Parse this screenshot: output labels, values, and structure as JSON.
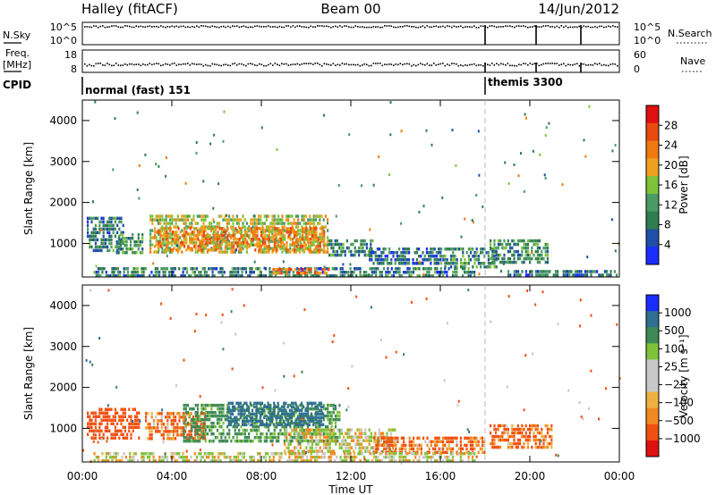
{
  "header": {
    "station": "Halley (fitACF)",
    "beam": "Beam 00",
    "date": "14/Jun/2012"
  },
  "nsky_panel": {
    "left_label": "N.Sky",
    "left_ticks": [
      "10^5",
      "10^0"
    ],
    "right_label": "N.Search",
    "right_ticks": [
      "10^5",
      "10^0"
    ]
  },
  "freq_panel": {
    "left_label_1": "Freq.",
    "left_label_2": "[MHz]",
    "left_ticks": [
      "18",
      "8"
    ],
    "right_label": "Nave",
    "right_ticks": [
      "60",
      "0"
    ]
  },
  "cpid": {
    "label": "CPID",
    "segments": [
      {
        "name": "normal (fast) 151",
        "start_hour": 0
      },
      {
        "name": "themis 3300",
        "start_hour": 18.1
      }
    ]
  },
  "colors": {
    "power": [
      "#1a2cff",
      "#1f4fa6",
      "#2f7d4f",
      "#4a9a63",
      "#7ec23a",
      "#f0a020",
      "#f07a10",
      "#e84a10",
      "#e01010"
    ],
    "velocity": [
      "#e01010",
      "#f05010",
      "#f08a20",
      "#f0b040",
      "#c8c8c8",
      "#c8c8c8",
      "#7ec23a",
      "#3e8a55",
      "#2f6f8f",
      "#1a2cff"
    ]
  },
  "chart_data": [
    {
      "type": "heatmap",
      "xlabel": "",
      "ylabel": "Slant Range [km]",
      "xlim": [
        0,
        24
      ],
      "ylim": [
        180,
        4500
      ],
      "yticks": [
        "4000",
        "3000",
        "2000",
        "1000"
      ],
      "colorbar": {
        "label": "Power [dB]",
        "range": [
          0,
          32
        ],
        "ticks": [
          "28",
          "24",
          "20",
          "16",
          "12",
          "8",
          "4"
        ]
      },
      "patches": [
        {
          "t0": 0.2,
          "t1": 1.8,
          "r0": 800,
          "r1": 1650,
          "level": 9,
          "var": 0
        },
        {
          "t0": 1.5,
          "t1": 2.7,
          "r0": 750,
          "r1": 1250,
          "level": 11,
          "var": 0
        },
        {
          "t0": 3.0,
          "t1": 11.0,
          "r0": 750,
          "r1": 1700,
          "level": 17,
          "var": 0
        },
        {
          "t0": 3.2,
          "t1": 10.8,
          "r0": 850,
          "r1": 1400,
          "level": 22,
          "var": 0
        },
        {
          "t0": 11.0,
          "t1": 13.0,
          "r0": 700,
          "r1": 1100,
          "level": 10,
          "var": 0
        },
        {
          "t0": 12.8,
          "t1": 16.0,
          "r0": 500,
          "r1": 900,
          "level": 7,
          "var": 0
        },
        {
          "t0": 16.0,
          "t1": 18.5,
          "r0": 450,
          "r1": 900,
          "level": 11,
          "var": 0
        },
        {
          "t0": 18.2,
          "t1": 20.8,
          "r0": 500,
          "r1": 1100,
          "level": 10,
          "var": 0
        },
        {
          "t0": 0.5,
          "t1": 17.5,
          "r0": 200,
          "r1": 420,
          "level": 9,
          "var": 0
        },
        {
          "t0": 8.5,
          "t1": 11.0,
          "r0": 250,
          "r1": 400,
          "level": 23,
          "var": 0
        },
        {
          "t0": 19.0,
          "t1": 23.9,
          "r0": 200,
          "r1": 350,
          "level": 8,
          "var": 0
        }
      ]
    },
    {
      "type": "heatmap",
      "xlabel": "Time UT",
      "ylabel": "Slant Range [km]",
      "xlim": [
        0,
        24
      ],
      "ylim": [
        180,
        4500
      ],
      "xticks": [
        "00:00",
        "04:00",
        "08:00",
        "12:00",
        "16:00",
        "20:00",
        "00:00"
      ],
      "yticks": [
        "4000",
        "3000",
        "2000",
        "1000"
      ],
      "colorbar": {
        "label": "Velocity [m s⁻¹]",
        "range": [
          -1000,
          1000
        ],
        "ticks": [
          "1000",
          "500",
          "100",
          "25",
          "-25",
          "-100",
          "-500",
          "-1000"
        ]
      },
      "patches": [
        {
          "t0": 0.2,
          "t1": 2.5,
          "r0": 750,
          "r1": 1500,
          "level": -300,
          "var": 0
        },
        {
          "t0": 2.8,
          "t1": 5.5,
          "r0": 750,
          "r1": 1400,
          "level": -120,
          "var": 0
        },
        {
          "t0": 4.5,
          "t1": 11.5,
          "r0": 700,
          "r1": 1600,
          "level": 150,
          "var": 0
        },
        {
          "t0": 6.5,
          "t1": 10.8,
          "r0": 1050,
          "r1": 1650,
          "level": 400,
          "var": 0
        },
        {
          "t0": 9.0,
          "t1": 14.0,
          "r0": 400,
          "r1": 1000,
          "level": 0,
          "var": 0
        },
        {
          "t0": 13.0,
          "t1": 18.0,
          "r0": 450,
          "r1": 800,
          "level": -110,
          "var": 0
        },
        {
          "t0": 18.2,
          "t1": 21.0,
          "r0": 500,
          "r1": 1100,
          "level": -110,
          "var": 0
        },
        {
          "t0": 0.5,
          "t1": 17.5,
          "r0": 200,
          "r1": 420,
          "level": 0,
          "var": 0
        }
      ]
    }
  ]
}
